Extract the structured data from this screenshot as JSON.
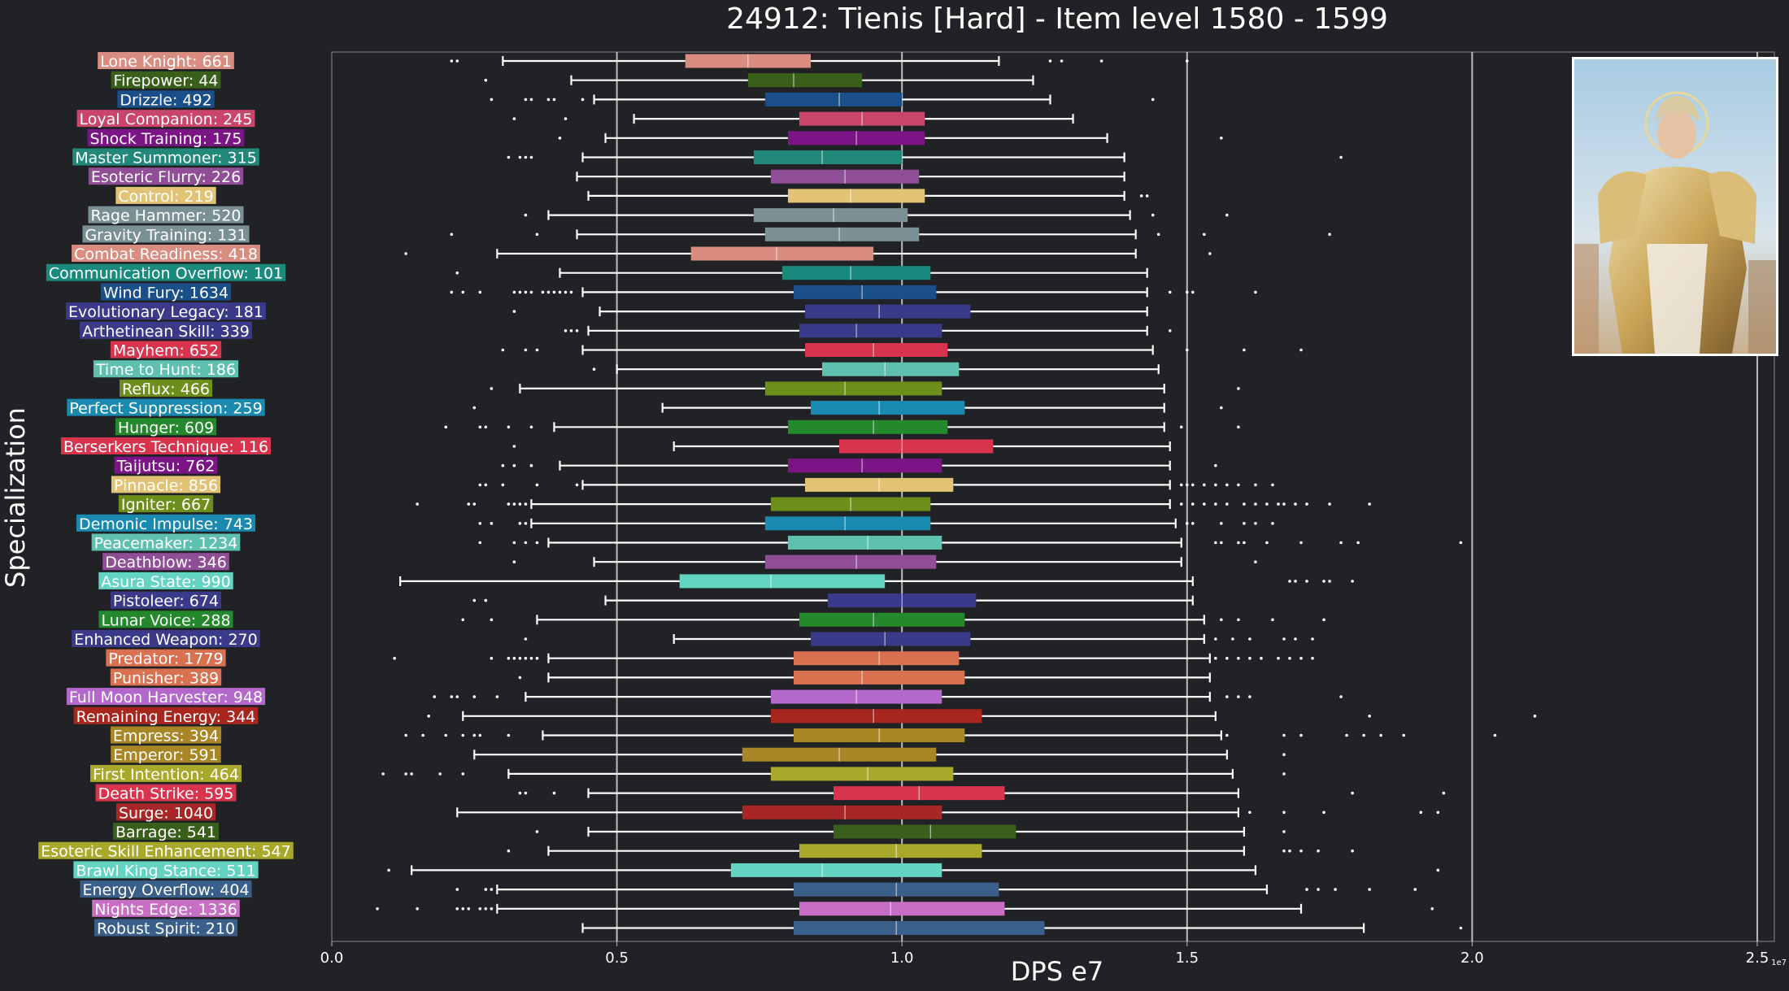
{
  "chart_data": {
    "type": "box",
    "title": "24912: Tienis [Hard] - Item level 1580 - 1599",
    "xlabel": "DPS e7",
    "ylabel": "Specialization",
    "x_tick_labels": [
      "0.0",
      "0.5",
      "1.0",
      "1.5",
      "2.0",
      "2.5"
    ],
    "x_ticks": [
      0,
      0.5,
      1.0,
      1.5,
      2.0,
      2.5
    ],
    "x_exponent_label": "1e7",
    "xlim": [
      0,
      2.53
    ],
    "grid": "vertical",
    "portrait_image": "character-portrait",
    "categories": [
      {
        "label": "Lone Knight: 661",
        "color": "#d98c80",
        "wl": 0.3,
        "q1": 0.62,
        "med": 0.73,
        "q3": 0.84,
        "wh": 1.17,
        "out": [
          0.21,
          0.22,
          1.26,
          1.28,
          1.35,
          1.5
        ]
      },
      {
        "label": "Firepower: 44",
        "color": "#3a5f1b",
        "wl": 0.42,
        "q1": 0.73,
        "med": 0.81,
        "q3": 0.93,
        "wh": 1.23,
        "out": [
          0.27
        ]
      },
      {
        "label": "Drizzle: 492",
        "color": "#1a4f8a",
        "wl": 0.46,
        "q1": 0.76,
        "med": 0.89,
        "q3": 1.0,
        "wh": 1.26,
        "out": [
          0.28,
          0.34,
          0.35,
          0.38,
          0.39,
          0.44,
          1.44
        ]
      },
      {
        "label": "Loyal Companion: 245",
        "color": "#c9466a",
        "wl": 0.53,
        "q1": 0.82,
        "med": 0.93,
        "q3": 1.04,
        "wh": 1.3,
        "out": [
          0.32,
          0.41
        ]
      },
      {
        "label": "Shock Training: 175",
        "color": "#7b1585",
        "wl": 0.48,
        "q1": 0.8,
        "med": 0.92,
        "q3": 1.04,
        "wh": 1.36,
        "out": [
          0.4,
          1.56
        ]
      },
      {
        "label": "Master Summoner: 315",
        "color": "#22897a",
        "wl": 0.44,
        "q1": 0.74,
        "med": 0.86,
        "q3": 1.0,
        "wh": 1.39,
        "out": [
          0.31,
          0.33,
          0.34,
          0.35,
          1.77
        ]
      },
      {
        "label": "Esoteric Flurry: 226",
        "color": "#8f4e96",
        "wl": 0.43,
        "q1": 0.77,
        "med": 0.9,
        "q3": 1.03,
        "wh": 1.39,
        "out": []
      },
      {
        "label": "Control: 219",
        "color": "#e2c274",
        "wl": 0.45,
        "q1": 0.8,
        "med": 0.91,
        "q3": 1.04,
        "wh": 1.39,
        "out": [
          1.42,
          1.43
        ]
      },
      {
        "label": "Rage Hammer: 520",
        "color": "#7b9094",
        "wl": 0.38,
        "q1": 0.74,
        "med": 0.88,
        "q3": 1.01,
        "wh": 1.4,
        "out": [
          0.34,
          1.44,
          1.57
        ]
      },
      {
        "label": "Gravity Training: 131",
        "color": "#7b9094",
        "wl": 0.43,
        "q1": 0.76,
        "med": 0.89,
        "q3": 1.03,
        "wh": 1.41,
        "out": [
          0.21,
          0.36,
          1.45,
          1.53,
          1.75
        ]
      },
      {
        "label": "Combat Readiness: 418",
        "color": "#d98c80",
        "wl": 0.29,
        "q1": 0.63,
        "med": 0.78,
        "q3": 0.95,
        "wh": 1.41,
        "out": [
          0.13,
          1.54
        ]
      },
      {
        "label": "Communication Overflow: 101",
        "color": "#1a8a7c",
        "wl": 0.4,
        "q1": 0.79,
        "med": 0.91,
        "q3": 1.05,
        "wh": 1.43,
        "out": [
          0.22
        ]
      },
      {
        "label": "Wind Fury: 1634",
        "color": "#1a4f8a",
        "wl": 0.44,
        "q1": 0.81,
        "med": 0.93,
        "q3": 1.06,
        "wh": 1.43,
        "out": [
          0.21,
          0.23,
          0.26,
          0.32,
          0.33,
          0.34,
          0.35,
          0.37,
          0.38,
          0.39,
          0.4,
          0.41,
          0.42,
          1.47,
          1.5,
          1.51,
          1.62
        ]
      },
      {
        "label": "Evolutionary Legacy: 181",
        "color": "#3a3a8a",
        "wl": 0.47,
        "q1": 0.83,
        "med": 0.96,
        "q3": 1.12,
        "wh": 1.43,
        "out": [
          0.32
        ]
      },
      {
        "label": "Arthetinean Skill: 339",
        "color": "#3a3a8a",
        "wl": 0.45,
        "q1": 0.82,
        "med": 0.92,
        "q3": 1.07,
        "wh": 1.43,
        "out": [
          0.41,
          0.42,
          0.43,
          1.47
        ]
      },
      {
        "label": "Mayhem: 652",
        "color": "#d9344e",
        "wl": 0.44,
        "q1": 0.83,
        "med": 0.95,
        "q3": 1.08,
        "wh": 1.44,
        "out": [
          0.3,
          0.34,
          0.36,
          1.5,
          1.6,
          1.7
        ]
      },
      {
        "label": "Time to Hunt: 186",
        "color": "#5ec1b0",
        "wl": 0.5,
        "q1": 0.86,
        "med": 0.97,
        "q3": 1.1,
        "wh": 1.45,
        "out": [
          0.46
        ]
      },
      {
        "label": "Reflux: 466",
        "color": "#6b8f1a",
        "wl": 0.33,
        "q1": 0.76,
        "med": 0.9,
        "q3": 1.07,
        "wh": 1.46,
        "out": [
          0.28,
          1.59
        ]
      },
      {
        "label": "Perfect Suppression: 259",
        "color": "#1a8ab0",
        "wl": 0.58,
        "q1": 0.84,
        "med": 0.96,
        "q3": 1.11,
        "wh": 1.46,
        "out": [
          0.25,
          1.56
        ]
      },
      {
        "label": "Hunger: 609",
        "color": "#24882d",
        "wl": 0.39,
        "q1": 0.8,
        "med": 0.95,
        "q3": 1.08,
        "wh": 1.46,
        "out": [
          0.2,
          0.26,
          0.27,
          0.31,
          0.35,
          1.49,
          1.59
        ]
      },
      {
        "label": "Berserkers Technique: 116",
        "color": "#d9344e",
        "wl": 0.6,
        "q1": 0.89,
        "med": 1.0,
        "q3": 1.16,
        "wh": 1.47,
        "out": [
          0.32
        ]
      },
      {
        "label": "Taijutsu: 762",
        "color": "#7b1585",
        "wl": 0.4,
        "q1": 0.8,
        "med": 0.93,
        "q3": 1.07,
        "wh": 1.47,
        "out": [
          0.3,
          0.32,
          0.35,
          1.55
        ]
      },
      {
        "label": "Pinnacle: 856",
        "color": "#e2c274",
        "wl": 0.44,
        "q1": 0.83,
        "med": 0.96,
        "q3": 1.09,
        "wh": 1.47,
        "out": [
          0.26,
          0.27,
          0.3,
          0.36,
          0.43,
          1.49,
          1.5,
          1.51,
          1.53,
          1.55,
          1.57,
          1.59,
          1.62,
          1.65
        ]
      },
      {
        "label": "Igniter: 667",
        "color": "#6b8f1a",
        "wl": 0.35,
        "q1": 0.77,
        "med": 0.91,
        "q3": 1.05,
        "wh": 1.47,
        "out": [
          0.15,
          0.24,
          0.25,
          0.31,
          0.32,
          0.33,
          0.34,
          1.49,
          1.51,
          1.53,
          1.55,
          1.57,
          1.6,
          1.62,
          1.64,
          1.66,
          1.67,
          1.69,
          1.71,
          1.75,
          1.82
        ]
      },
      {
        "label": "Demonic Impulse: 743",
        "color": "#1a8ab0",
        "wl": 0.35,
        "q1": 0.76,
        "med": 0.9,
        "q3": 1.05,
        "wh": 1.48,
        "out": [
          0.26,
          0.28,
          0.33,
          0.34,
          1.5,
          1.51,
          1.56,
          1.6,
          1.62,
          1.65
        ]
      },
      {
        "label": "Peacemaker: 1234",
        "color": "#5ec1b0",
        "wl": 0.38,
        "q1": 0.8,
        "med": 0.94,
        "q3": 1.07,
        "wh": 1.49,
        "out": [
          0.26,
          0.32,
          0.34,
          0.36,
          1.55,
          1.56,
          1.59,
          1.6,
          1.64,
          1.7,
          1.77,
          1.8,
          1.98
        ]
      },
      {
        "label": "Deathblow: 346",
        "color": "#8f4e96",
        "wl": 0.46,
        "q1": 0.76,
        "med": 0.92,
        "q3": 1.06,
        "wh": 1.49,
        "out": [
          0.32,
          1.62
        ]
      },
      {
        "label": "Asura State: 990",
        "color": "#63d4c2",
        "wl": 0.12,
        "q1": 0.61,
        "med": 0.77,
        "q3": 0.97,
        "wh": 1.51,
        "out": [
          1.68,
          1.69,
          1.71,
          1.74,
          1.75,
          1.79
        ]
      },
      {
        "label": "Pistoleer: 674",
        "color": "#3a3a8a",
        "wl": 0.48,
        "q1": 0.87,
        "med": 1.0,
        "q3": 1.13,
        "wh": 1.51,
        "out": [
          0.25,
          0.27
        ]
      },
      {
        "label": "Lunar Voice: 288",
        "color": "#24882d",
        "wl": 0.36,
        "q1": 0.82,
        "med": 0.95,
        "q3": 1.11,
        "wh": 1.53,
        "out": [
          0.23,
          0.28,
          1.56,
          1.59,
          1.65,
          1.74
        ]
      },
      {
        "label": "Enhanced Weapon: 270",
        "color": "#3a3a8a",
        "wl": 0.6,
        "q1": 0.84,
        "med": 0.97,
        "q3": 1.12,
        "wh": 1.53,
        "out": [
          0.34,
          1.55,
          1.58,
          1.61,
          1.67,
          1.69,
          1.72
        ]
      },
      {
        "label": "Predator: 1779",
        "color": "#d9704f",
        "wl": 0.38,
        "q1": 0.81,
        "med": 0.96,
        "q3": 1.1,
        "wh": 1.54,
        "out": [
          0.11,
          0.28,
          0.31,
          0.32,
          0.33,
          0.34,
          0.35,
          0.36,
          1.55,
          1.57,
          1.59,
          1.61,
          1.63,
          1.66,
          1.68,
          1.7,
          1.72
        ]
      },
      {
        "label": "Punisher: 389",
        "color": "#d9704f",
        "wl": 0.38,
        "q1": 0.81,
        "med": 0.93,
        "q3": 1.11,
        "wh": 1.54,
        "out": [
          0.33
        ]
      },
      {
        "label": "Full Moon Harvester: 948",
        "color": "#b568cc",
        "wl": 0.34,
        "q1": 0.77,
        "med": 0.92,
        "q3": 1.07,
        "wh": 1.54,
        "out": [
          0.18,
          0.21,
          0.22,
          0.25,
          0.29,
          1.57,
          1.59,
          1.61,
          1.77
        ]
      },
      {
        "label": "Remaining Energy: 344",
        "color": "#a8261e",
        "wl": 0.23,
        "q1": 0.77,
        "med": 0.95,
        "q3": 1.14,
        "wh": 1.55,
        "out": [
          0.17,
          1.82,
          2.11
        ]
      },
      {
        "label": "Empress: 394",
        "color": "#a88626",
        "wl": 0.37,
        "q1": 0.81,
        "med": 0.96,
        "q3": 1.11,
        "wh": 1.56,
        "out": [
          0.13,
          0.16,
          0.2,
          0.23,
          0.25,
          0.26,
          0.31,
          1.57,
          1.67,
          1.7,
          1.78,
          1.81,
          1.84,
          1.88,
          2.04
        ]
      },
      {
        "label": "Emperor: 591",
        "color": "#a88626",
        "wl": 0.25,
        "q1": 0.72,
        "med": 0.89,
        "q3": 1.06,
        "wh": 1.57,
        "out": [
          1.67
        ]
      },
      {
        "label": "First Intention: 464",
        "color": "#a8a82a",
        "wl": 0.31,
        "q1": 0.77,
        "med": 0.94,
        "q3": 1.09,
        "wh": 1.58,
        "out": [
          0.09,
          0.13,
          0.14,
          0.19,
          0.23,
          1.67
        ]
      },
      {
        "label": "Death Strike: 595",
        "color": "#d9344e",
        "wl": 0.45,
        "q1": 0.88,
        "med": 1.03,
        "q3": 1.18,
        "wh": 1.59,
        "out": [
          0.33,
          0.34,
          0.39,
          1.79,
          1.95
        ]
      },
      {
        "label": "Surge: 1040",
        "color": "#a82626",
        "wl": 0.22,
        "q1": 0.72,
        "med": 0.9,
        "q3": 1.07,
        "wh": 1.59,
        "out": [
          1.61,
          1.67,
          1.74,
          1.91,
          1.94
        ]
      },
      {
        "label": "Barrage: 541",
        "color": "#3a5f1b",
        "wl": 0.45,
        "q1": 0.88,
        "med": 1.05,
        "q3": 1.2,
        "wh": 1.6,
        "out": [
          0.36,
          1.67
        ]
      },
      {
        "label": "Esoteric Skill Enhancement: 547",
        "color": "#a8a82a",
        "wl": 0.38,
        "q1": 0.82,
        "med": 0.99,
        "q3": 1.14,
        "wh": 1.6,
        "out": [
          0.31,
          1.67,
          1.68,
          1.7,
          1.73,
          1.79
        ]
      },
      {
        "label": "Brawl King Stance: 511",
        "color": "#63d4c2",
        "wl": 0.14,
        "q1": 0.7,
        "med": 0.86,
        "q3": 1.07,
        "wh": 1.62,
        "out": [
          0.1,
          1.94
        ]
      },
      {
        "label": "Energy Overflow: 404",
        "color": "#3a5f8a",
        "wl": 0.29,
        "q1": 0.81,
        "med": 0.99,
        "q3": 1.17,
        "wh": 1.64,
        "out": [
          0.22,
          0.27,
          0.28,
          1.71,
          1.73,
          1.76,
          1.82,
          1.9
        ]
      },
      {
        "label": "Nights Edge: 1336",
        "color": "#c76fc4",
        "wl": 0.29,
        "q1": 0.82,
        "med": 0.98,
        "q3": 1.18,
        "wh": 1.7,
        "out": [
          0.08,
          0.15,
          0.22,
          0.23,
          0.24,
          0.26,
          0.27,
          0.28,
          1.93
        ]
      },
      {
        "label": "Robust Spirit: 210",
        "color": "#3a5f8a",
        "wl": 0.44,
        "q1": 0.81,
        "med": 0.99,
        "q3": 1.25,
        "wh": 1.81,
        "out": [
          1.98
        ]
      }
    ]
  }
}
